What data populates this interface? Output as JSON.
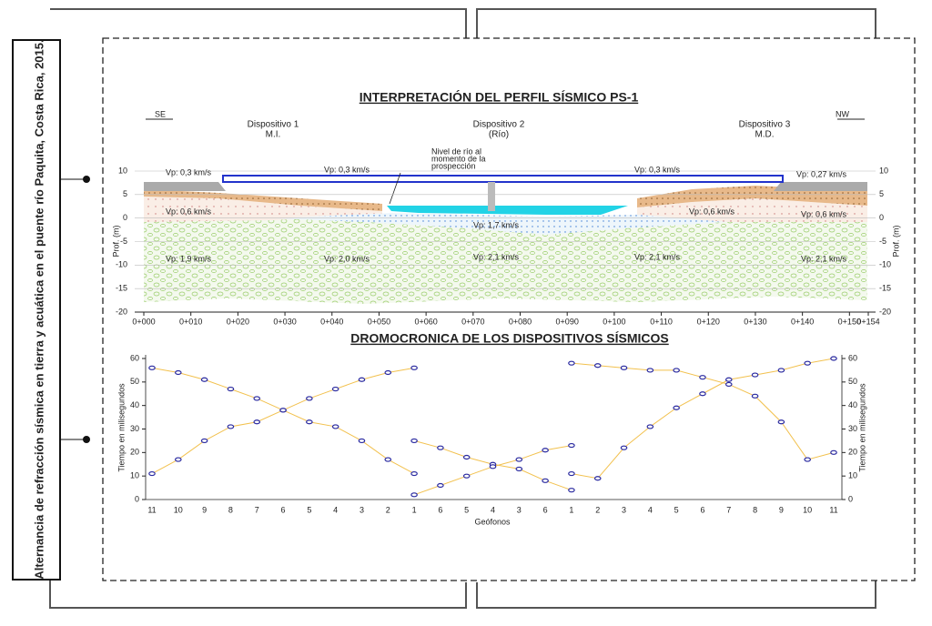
{
  "side_label": "Alternancia de refracción sísmica en tierra y acuática en el puente río Paquita, Costa Rica, 2015.",
  "chart_data": [
    {
      "type": "profile",
      "title": "INTERPRETACIÓN DEL PERFIL SÍSMICO PS-1",
      "direction_left": "SE",
      "direction_right": "NW",
      "devices": [
        {
          "name": "Dispositivo 1",
          "sub": "M.I."
        },
        {
          "name": "Dispositivo 2",
          "sub": "(Río)"
        },
        {
          "name": "Dispositivo 3",
          "sub": "M.D."
        }
      ],
      "annotation": [
        "Nivel de río al",
        "momento de la",
        "prospección"
      ],
      "velocity_labels": [
        "Vp: 0,3 km/s",
        "Vp: 0,3 km/s",
        "Vp: 0,3 km/s",
        "Vp: 0,27 km/s",
        "Vp: 0,6 km/s",
        "Vp: 0,6 km/s",
        "Vp: 0,6 km/s",
        "Vp: 1,7 km/s",
        "Vp: 1,9 km/s",
        "Vp: 2,0 km/s",
        "Vp: 2,1 km/s",
        "Vp: 2,1 km/s",
        "Vp: 2,1 km/s"
      ],
      "ylabel": "Prof. (m)",
      "xlim": [
        0,
        154
      ],
      "xticks": [
        {
          "value": 0,
          "label": "0+000"
        },
        {
          "value": 10,
          "label": "0+010"
        },
        {
          "value": 20,
          "label": "0+020"
        },
        {
          "value": 30,
          "label": "0+030"
        },
        {
          "value": 40,
          "label": "0+040"
        },
        {
          "value": 50,
          "label": "0+050"
        },
        {
          "value": 60,
          "label": "0+060"
        },
        {
          "value": 70,
          "label": "0+070"
        },
        {
          "value": 80,
          "label": "0+080"
        },
        {
          "value": 90,
          "label": "0+090"
        },
        {
          "value": 100,
          "label": "0+100"
        },
        {
          "value": 110,
          "label": "0+110"
        },
        {
          "value": 120,
          "label": "0+120"
        },
        {
          "value": 130,
          "label": "0+130"
        },
        {
          "value": 140,
          "label": "0+140"
        },
        {
          "value": 150,
          "label": "0+150"
        },
        {
          "value": 154,
          "label": "0+154"
        }
      ],
      "ylim": [
        -20,
        10
      ],
      "yticks": [
        -20,
        -15,
        -10,
        -5,
        0,
        5,
        10
      ],
      "grid": true
    },
    {
      "type": "line",
      "title": "DROMOCRONICA DE LOS DISPOSITIVOS SÍSMICOS",
      "xlabel": "Geófonos",
      "ylabel": "Tiempo en milisegundos",
      "categories": [
        "11",
        "10",
        "9",
        "8",
        "7",
        "6",
        "5",
        "4",
        "3",
        "2",
        "1",
        "6",
        "5",
        "4",
        "3",
        "6",
        "1",
        "2",
        "3",
        "4",
        "5",
        "6",
        "7",
        "8",
        "9",
        "10",
        "11"
      ],
      "ylim": [
        0,
        60
      ],
      "yticks": [
        0,
        10,
        20,
        30,
        40,
        50,
        60
      ],
      "marker_color": "#2a2aa0",
      "series": [
        {
          "color": "#f2c14e",
          "values": [
            56,
            54,
            51,
            47,
            43,
            38,
            33,
            31,
            25,
            17,
            11,
            null,
            null,
            null,
            null,
            null,
            null,
            null,
            null,
            null,
            null,
            null,
            null,
            null,
            null,
            null,
            null
          ]
        },
        {
          "color": "#f2c14e",
          "values": [
            11,
            17,
            25,
            31,
            33,
            38,
            43,
            47,
            51,
            54,
            56,
            null,
            null,
            null,
            null,
            null,
            null,
            null,
            null,
            null,
            null,
            null,
            null,
            null,
            null,
            null,
            null
          ]
        },
        {
          "color": "#f2c14e",
          "values": [
            null,
            null,
            null,
            null,
            null,
            null,
            null,
            null,
            null,
            null,
            25,
            22,
            18,
            15,
            13,
            8,
            4,
            null,
            null,
            null,
            null,
            null,
            null,
            null,
            null,
            null,
            null
          ]
        },
        {
          "color": "#f2c14e",
          "values": [
            null,
            null,
            null,
            null,
            null,
            null,
            null,
            null,
            null,
            null,
            2,
            6,
            10,
            14,
            17,
            21,
            23,
            null,
            null,
            null,
            null,
            null,
            null,
            null,
            null,
            null,
            null
          ]
        },
        {
          "color": "#f2c14e",
          "values": [
            null,
            null,
            null,
            null,
            null,
            null,
            null,
            null,
            null,
            null,
            null,
            null,
            null,
            null,
            null,
            null,
            58,
            57,
            56,
            55,
            55,
            52,
            49,
            44,
            33,
            17,
            20
          ]
        },
        {
          "color": "#f2c14e",
          "values": [
            null,
            null,
            null,
            null,
            null,
            null,
            null,
            null,
            null,
            null,
            null,
            null,
            null,
            null,
            null,
            null,
            11,
            9,
            22,
            31,
            39,
            45,
            51,
            53,
            55,
            58,
            60
          ]
        }
      ]
    }
  ]
}
